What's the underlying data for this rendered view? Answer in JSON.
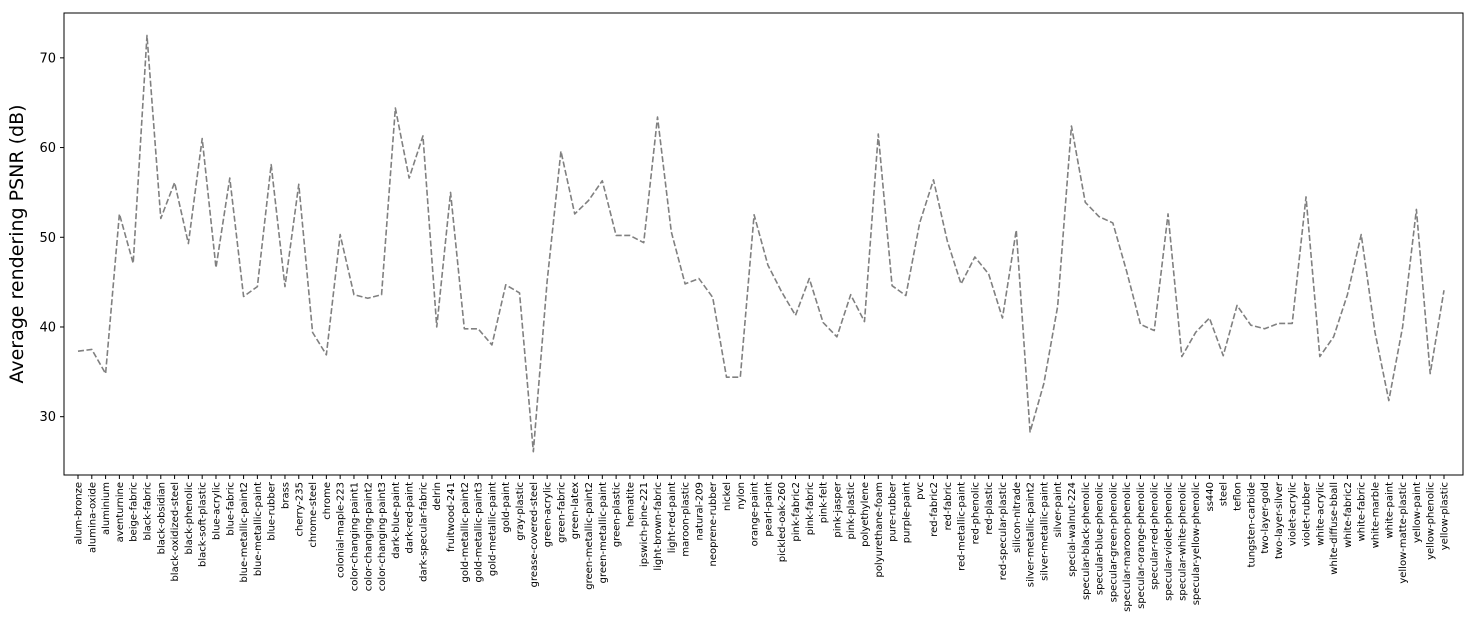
{
  "chart_data": {
    "type": "line",
    "title": "",
    "xlabel": "",
    "ylabel": "Average rendering PSNR (dB)",
    "ylim": [
      23.5,
      75
    ],
    "yticks": [
      30,
      40,
      50,
      60,
      70
    ],
    "grid": false,
    "line_style": "dashed",
    "line_color": "#808080",
    "categories": [
      "alum-bronze",
      "alumina-oxide",
      "aluminium",
      "aventurnine",
      "beige-fabric",
      "black-fabric",
      "black-obsidian",
      "black-oxidized-steel",
      "black-phenolic",
      "black-soft-plastic",
      "blue-acrylic",
      "blue-fabric",
      "blue-metallic-paint2",
      "blue-metallic-paint",
      "blue-rubber",
      "brass",
      "cherry-235",
      "chrome-steel",
      "chrome",
      "colonial-maple-223",
      "color-changing-paint1",
      "color-changing-paint2",
      "color-changing-paint3",
      "dark-blue-paint",
      "dark-red-paint",
      "dark-specular-fabric",
      "delrin",
      "fruitwood-241",
      "gold-metallic-paint2",
      "gold-metallic-paint3",
      "gold-metallic-paint",
      "gold-paint",
      "gray-plastic",
      "grease-covered-steel",
      "green-acrylic",
      "green-fabric",
      "green-latex",
      "green-metallic-paint2",
      "green-metallic-paint",
      "green-plastic",
      "hematite",
      "ipswich-pine-221",
      "light-brown-fabric",
      "light-red-paint",
      "maroon-plastic",
      "natural-209",
      "neoprene-rubber",
      "nickel",
      "nylon",
      "orange-paint",
      "pearl-paint",
      "pickled-oak-260",
      "pink-fabric2",
      "pink-fabric",
      "pink-felt",
      "pink-jasper",
      "pink-plastic",
      "polyethylene",
      "polyurethane-foam",
      "pure-rubber",
      "purple-paint",
      "pvc",
      "red-fabric2",
      "red-fabric",
      "red-metallic-paint",
      "red-phenolic",
      "red-plastic",
      "red-specular-plastic",
      "silicon-nitrade",
      "silver-metallic-paint2",
      "silver-metallic-paint",
      "silver-paint",
      "special-walnut-224",
      "specular-black-phenolic",
      "specular-blue-phenolic",
      "specular-green-phenolic",
      "specular-maroon-phenolic",
      "specular-orange-phenolic",
      "specular-red-phenolic",
      "specular-violet-phenolic",
      "specular-white-phenolic",
      "specular-yellow-phenolic",
      "ss440",
      "steel",
      "teflon",
      "tungsten-carbide",
      "two-layer-gold",
      "two-layer-silver",
      "violet-acrylic",
      "violet-rubber",
      "white-acrylic",
      "white-diffuse-bball",
      "white-fabric2",
      "white-fabric",
      "white-marble",
      "white-paint",
      "yellow-matte-plastic",
      "yellow-paint",
      "yellow-phenolic",
      "yellow-plastic"
    ],
    "series": [
      {
        "values": [
          37.3,
          37.5,
          34.8,
          52.6,
          47.1,
          72.5,
          52.1,
          56.1,
          49.3,
          61.0,
          46.6,
          56.6,
          43.4,
          44.5,
          58.1,
          44.5,
          55.9,
          39.4,
          36.9,
          50.3,
          43.6,
          43.2,
          43.6,
          64.4,
          56.6,
          61.3,
          40.0,
          55.0,
          39.8,
          39.8,
          38.0,
          44.7,
          43.8,
          26.1,
          45.1,
          59.6,
          52.6,
          54.1,
          56.3,
          50.2,
          50.2,
          49.4,
          63.4,
          50.6,
          44.8,
          45.4,
          43.3,
          34.4,
          34.4,
          52.5,
          46.9,
          43.9,
          41.3,
          45.4,
          40.5,
          38.9,
          43.6,
          40.6,
          61.5,
          44.6,
          43.5,
          51.6,
          56.4,
          49.6,
          44.8,
          47.8,
          45.9,
          41.0,
          50.8,
          28.3,
          33.7,
          42.3,
          62.4,
          53.9,
          52.3,
          51.6,
          46.2,
          40.3,
          39.6,
          52.6,
          36.7,
          39.4,
          41.0,
          36.8,
          42.4,
          40.2,
          39.8,
          40.4,
          40.4,
          54.5,
          36.7,
          38.9,
          43.6,
          50.3,
          39.4,
          31.8,
          40.0,
          53.1,
          34.8,
          44.1
        ]
      }
    ]
  }
}
